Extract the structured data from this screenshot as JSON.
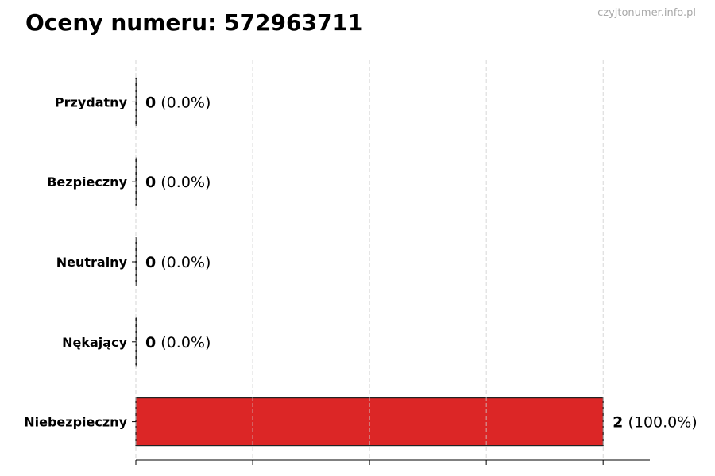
{
  "chart_data": {
    "type": "bar",
    "orientation": "horizontal",
    "title": "Oceny numeru: 572963711",
    "watermark": "czyjtonumer.info.pl",
    "categories": [
      "Przydatny",
      "Bezpieczny",
      "Neutralny",
      "Nękający",
      "Niebezpieczny"
    ],
    "values": [
      0,
      0,
      0,
      0,
      2
    ],
    "percent_labels": [
      "(0.0%)",
      "(0.0%)",
      "(0.0%)",
      "(0.0%)",
      "(100.0%)"
    ],
    "colors": [
      "#dc2626",
      "#dc2626",
      "#dc2626",
      "#dc2626",
      "#dc2626"
    ],
    "xlim": [
      0,
      2.2
    ],
    "x_gridlines": [
      0,
      0.5,
      1,
      1.5,
      2
    ],
    "x_tick_labels_visible": false,
    "grid": "vertical-dashed",
    "xlabel": "",
    "ylabel": ""
  }
}
